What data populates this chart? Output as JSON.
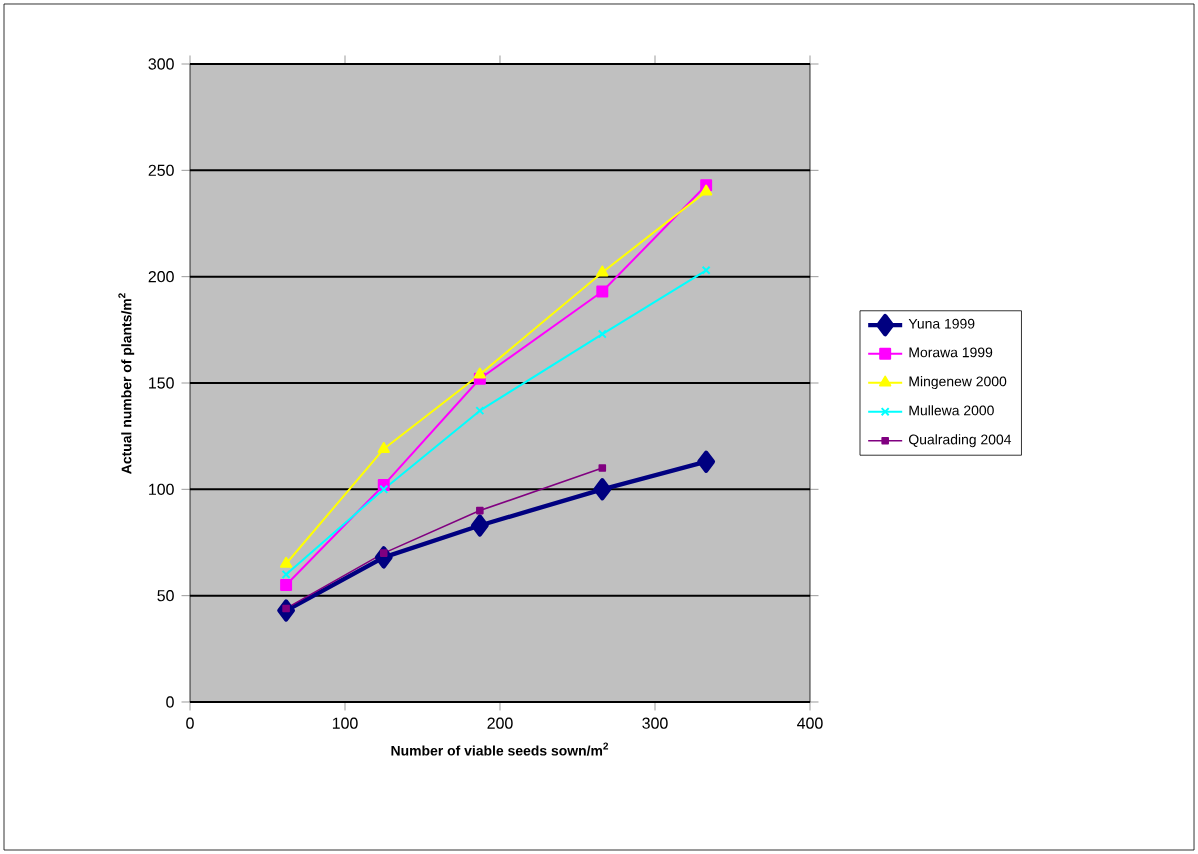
{
  "chart_data": {
    "type": "line",
    "xlabel": "Number of viable seeds sown/m$^{2}$",
    "ylabel": "Actual number of plants/m$^{2}$",
    "xlim": [
      0,
      400
    ],
    "xticks": [
      0,
      100,
      200,
      300,
      400
    ],
    "ylim": [
      0,
      300
    ],
    "yticks": [
      0,
      50,
      100,
      150,
      200,
      250,
      300
    ],
    "grid": "y",
    "legend": "right",
    "series": [
      {
        "name": "Yuna 1999",
        "color": "#000080",
        "marker": "diamond",
        "x": [
          62,
          125,
          187,
          266,
          333
        ],
        "values": [
          43,
          68,
          83,
          100,
          113
        ]
      },
      {
        "name": "Morawa 1999",
        "color": "#ff00ff",
        "marker": "square",
        "x": [
          62,
          125,
          187,
          266,
          333
        ],
        "values": [
          55,
          102,
          152,
          193,
          243
        ]
      },
      {
        "name": "Mingenew 2000",
        "color": "#ffff00",
        "marker": "triangle",
        "x": [
          62,
          125,
          187,
          266,
          333
        ],
        "values": [
          65,
          119,
          154,
          202,
          240
        ]
      },
      {
        "name": "Mullewa 2000",
        "color": "#00ffff",
        "marker": "cross",
        "x": [
          62,
          125,
          187,
          266,
          333
        ],
        "values": [
          60,
          100,
          137,
          173,
          203
        ]
      },
      {
        "name": "Qualrading 2004",
        "color": "#800080",
        "marker": "square",
        "x": [
          62,
          125,
          187,
          266
        ],
        "values": [
          44,
          70,
          90,
          110
        ]
      }
    ]
  }
}
